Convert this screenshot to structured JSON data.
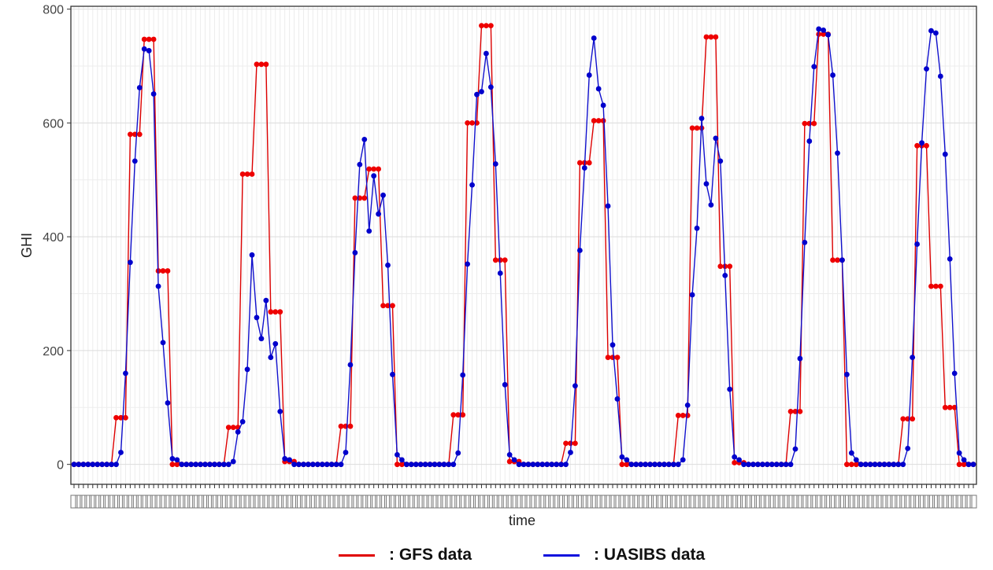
{
  "chart_data": {
    "type": "line",
    "xlabel": "time",
    "ylabel": "GHI",
    "ylim": [
      -35,
      805
    ],
    "y_ticks": [
      0,
      200,
      400,
      600,
      800
    ],
    "x_count": 193,
    "x_tick_labels": "unreadable (overlapping timestamps at every hourly point)",
    "grid": true,
    "legend_position": "bottom",
    "colors": {
      "gfs": "#dd0000",
      "uasibs": "#1010cc",
      "points_gfs": "#ee0000",
      "points_uasibs": "#0000cc"
    },
    "daily_pattern": {
      "days": 8,
      "points_per_day": 24,
      "GFS data": [
        [
          0,
          0,
          0,
          0,
          0,
          0,
          0,
          0,
          0,
          82,
          82,
          82,
          580,
          580,
          580,
          747,
          747,
          747,
          340,
          340,
          340,
          0,
          0,
          0
        ],
        [
          0,
          0,
          0,
          0,
          0,
          0,
          0,
          0,
          0,
          65,
          65,
          65,
          510,
          510,
          510,
          703,
          703,
          703,
          268,
          268,
          268,
          5,
          5,
          5
        ],
        [
          0,
          0,
          0,
          0,
          0,
          0,
          0,
          0,
          0,
          67,
          67,
          67,
          468,
          468,
          468,
          519,
          519,
          519,
          279,
          279,
          279,
          0,
          0,
          0
        ],
        [
          0,
          0,
          0,
          0,
          0,
          0,
          0,
          0,
          0,
          87,
          87,
          87,
          600,
          600,
          600,
          771,
          771,
          771,
          359,
          359,
          359,
          5,
          5,
          5
        ],
        [
          0,
          0,
          0,
          0,
          0,
          0,
          0,
          0,
          0,
          37,
          37,
          37,
          530,
          530,
          530,
          604,
          604,
          604,
          188,
          188,
          188,
          0,
          0,
          0
        ],
        [
          0,
          0,
          0,
          0,
          0,
          0,
          0,
          0,
          0,
          86,
          86,
          86,
          591,
          591,
          591,
          751,
          751,
          751,
          348,
          348,
          348,
          3,
          3,
          3
        ],
        [
          0,
          0,
          0,
          0,
          0,
          0,
          0,
          0,
          0,
          93,
          93,
          93,
          599,
          599,
          599,
          756,
          756,
          756,
          359,
          359,
          359,
          0,
          0,
          0
        ],
        [
          0,
          0,
          0,
          0,
          0,
          0,
          0,
          0,
          0,
          80,
          80,
          80,
          560,
          560,
          560,
          313,
          313,
          313,
          100,
          100,
          100,
          0,
          0,
          0
        ]
      ],
      "UASIBS data": [
        [
          0,
          0,
          0,
          0,
          0,
          0,
          0,
          0,
          0,
          0,
          21,
          160,
          355,
          533,
          662,
          730,
          727,
          651,
          313,
          214,
          108,
          10,
          8,
          0
        ],
        [
          0,
          0,
          0,
          0,
          0,
          0,
          0,
          0,
          0,
          0,
          5,
          57,
          75,
          167,
          368,
          258,
          221,
          288,
          188,
          212,
          93,
          10,
          8,
          0
        ],
        [
          0,
          0,
          0,
          0,
          0,
          0,
          0,
          0,
          0,
          0,
          21,
          175,
          372,
          527,
          571,
          410,
          507,
          440,
          473,
          350,
          158,
          17,
          8,
          0
        ],
        [
          0,
          0,
          0,
          0,
          0,
          0,
          0,
          0,
          0,
          0,
          20,
          157,
          352,
          491,
          650,
          655,
          722,
          663,
          528,
          336,
          140,
          17,
          8,
          0
        ],
        [
          0,
          0,
          0,
          0,
          0,
          0,
          0,
          0,
          0,
          0,
          21,
          138,
          376,
          521,
          684,
          749,
          660,
          631,
          454,
          210,
          115,
          13,
          8,
          0
        ],
        [
          0,
          0,
          0,
          0,
          0,
          0,
          0,
          0,
          0,
          0,
          8,
          104,
          298,
          415,
          608,
          493,
          456,
          573,
          533,
          332,
          132,
          13,
          8,
          0
        ],
        [
          0,
          0,
          0,
          0,
          0,
          0,
          0,
          0,
          0,
          0,
          27,
          186,
          390,
          568,
          699,
          765,
          763,
          755,
          684,
          547,
          359,
          158,
          20,
          8
        ],
        [
          0,
          0,
          0,
          0,
          0,
          0,
          0,
          0,
          0,
          0,
          28,
          188,
          387,
          565,
          695,
          762,
          758,
          682,
          545,
          361,
          160,
          20,
          8,
          0
        ]
      ],
      "trailing_point": {
        "GFS data": 0,
        "UASIBS data": 0
      }
    },
    "series": [
      {
        "name": "GFS data",
        "color": "#dd0000"
      },
      {
        "name": "UASIBS data",
        "color": "#1010cc"
      }
    ]
  },
  "legend": {
    "gfs_label": ": GFS data",
    "uasibs_label": ": UASIBS data"
  }
}
